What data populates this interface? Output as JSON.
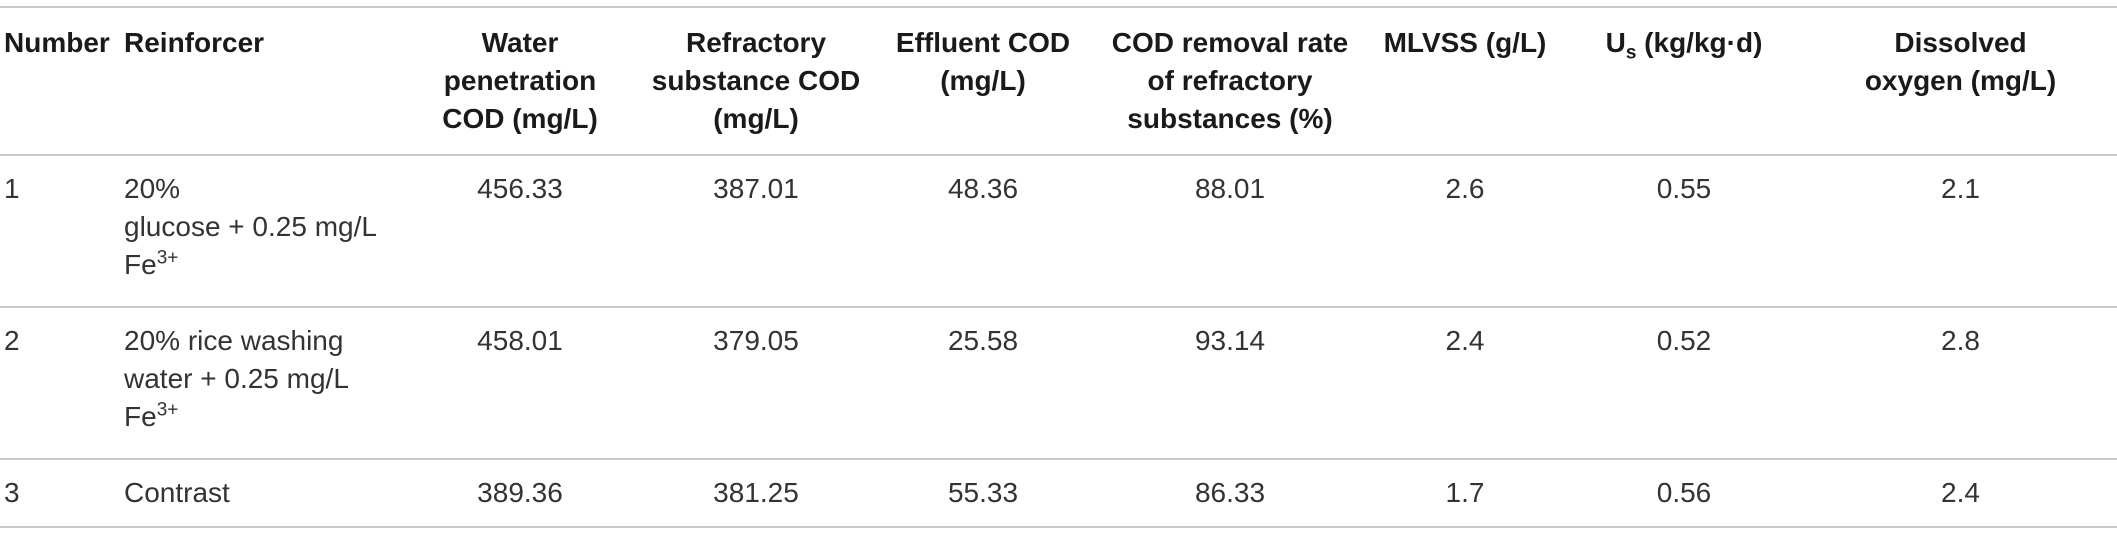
{
  "table": {
    "headers": {
      "number": "Number",
      "reinforcer": "Reinforcer",
      "water_cod_line1": "Water penetration",
      "water_cod_line2": "COD (mg/L)",
      "refractory_cod_line1": "Refractory",
      "refractory_cod_line2": "substance COD",
      "refractory_cod_line3": "(mg/L)",
      "effluent_cod_line1": "Effluent COD",
      "effluent_cod_line2": "(mg/L)",
      "removal_rate_line1": "COD removal rate",
      "removal_rate_line2": "of refractory",
      "removal_rate_line3": "substances (%)",
      "mlvss": "MLVSS (g/L)",
      "us_main": "U",
      "us_sub": "s",
      "us_unit": " (kg/kg·d)",
      "do_line1": "Dissolved",
      "do_line2": "oxygen (mg/L)"
    },
    "rows": [
      {
        "number": "1",
        "reinforcer_line1": "20%",
        "reinforcer_line2": "glucose + 0.25 mg/L",
        "reinforcer_ion": "Fe",
        "reinforcer_ion_sup": "3+",
        "water_cod": "456.33",
        "refractory_cod": "387.01",
        "effluent_cod": "48.36",
        "removal_rate": "88.01",
        "mlvss": "2.6",
        "us": "0.55",
        "dissolved_oxygen": "2.1"
      },
      {
        "number": "2",
        "reinforcer_line1": "20% rice washing",
        "reinforcer_line2": "water + 0.25 mg/L",
        "reinforcer_ion": "Fe",
        "reinforcer_ion_sup": "3+",
        "water_cod": "458.01",
        "refractory_cod": "379.05",
        "effluent_cod": "25.58",
        "removal_rate": "93.14",
        "mlvss": "2.4",
        "us": "0.52",
        "dissolved_oxygen": "2.8"
      },
      {
        "number": "3",
        "reinforcer_line1": "Contrast",
        "water_cod": "389.36",
        "refractory_cod": "381.25",
        "effluent_cod": "55.33",
        "removal_rate": "86.33",
        "mlvss": "1.7",
        "us": "0.56",
        "dissolved_oxygen": "2.4"
      }
    ]
  }
}
